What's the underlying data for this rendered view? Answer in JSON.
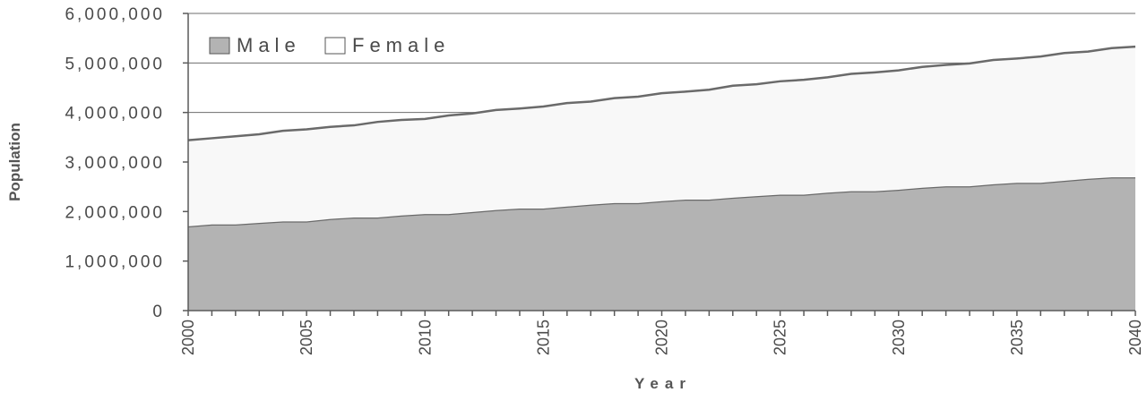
{
  "chart_data": {
    "type": "area",
    "stacked": true,
    "title": "",
    "xlabel": "Year",
    "ylabel": "Population",
    "ylim": [
      0,
      6000000
    ],
    "yticks": [
      "0",
      "1,000,000",
      "2,000,000",
      "3,000,000",
      "4,000,000",
      "5,000,000",
      "6,000,000"
    ],
    "ytick_values": [
      0,
      1000000,
      2000000,
      3000000,
      4000000,
      5000000,
      6000000
    ],
    "xlim": [
      2000,
      2040
    ],
    "xticks": [
      "2000",
      "2005",
      "2010",
      "2015",
      "2020",
      "2025",
      "2030",
      "2035",
      "2040"
    ],
    "xtick_values": [
      2000,
      2005,
      2010,
      2015,
      2020,
      2025,
      2030,
      2035,
      2040
    ],
    "grid": "horizontal",
    "legend_position": "top-left",
    "x": [
      2000,
      2001,
      2002,
      2003,
      2004,
      2005,
      2006,
      2007,
      2008,
      2009,
      2010,
      2011,
      2012,
      2013,
      2014,
      2015,
      2016,
      2017,
      2018,
      2019,
      2020,
      2021,
      2022,
      2023,
      2024,
      2025,
      2026,
      2027,
      2028,
      2029,
      2030,
      2031,
      2032,
      2033,
      2034,
      2035,
      2036,
      2037,
      2038,
      2039,
      2040
    ],
    "series": [
      {
        "name": "Male",
        "color": "#b3b3b3",
        "values": [
          1700000,
          1740000,
          1740000,
          1770000,
          1800000,
          1800000,
          1850000,
          1880000,
          1880000,
          1920000,
          1950000,
          1950000,
          1990000,
          2030000,
          2060000,
          2060000,
          2100000,
          2140000,
          2170000,
          2170000,
          2210000,
          2240000,
          2240000,
          2280000,
          2310000,
          2340000,
          2340000,
          2380000,
          2410000,
          2410000,
          2440000,
          2480000,
          2510000,
          2510000,
          2550000,
          2580000,
          2580000,
          2620000,
          2660000,
          2690000,
          2690000
        ]
      },
      {
        "name": "Female",
        "color": "#f8f8f8",
        "values": [
          1740000,
          1740000,
          1780000,
          1790000,
          1830000,
          1860000,
          1860000,
          1860000,
          1930000,
          1930000,
          1920000,
          1990000,
          1990000,
          2020000,
          2020000,
          2060000,
          2090000,
          2080000,
          2120000,
          2150000,
          2180000,
          2180000,
          2220000,
          2260000,
          2260000,
          2290000,
          2320000,
          2330000,
          2370000,
          2400000,
          2410000,
          2440000,
          2450000,
          2480000,
          2510000,
          2510000,
          2550000,
          2580000,
          2570000,
          2610000,
          2640000
        ]
      }
    ]
  }
}
